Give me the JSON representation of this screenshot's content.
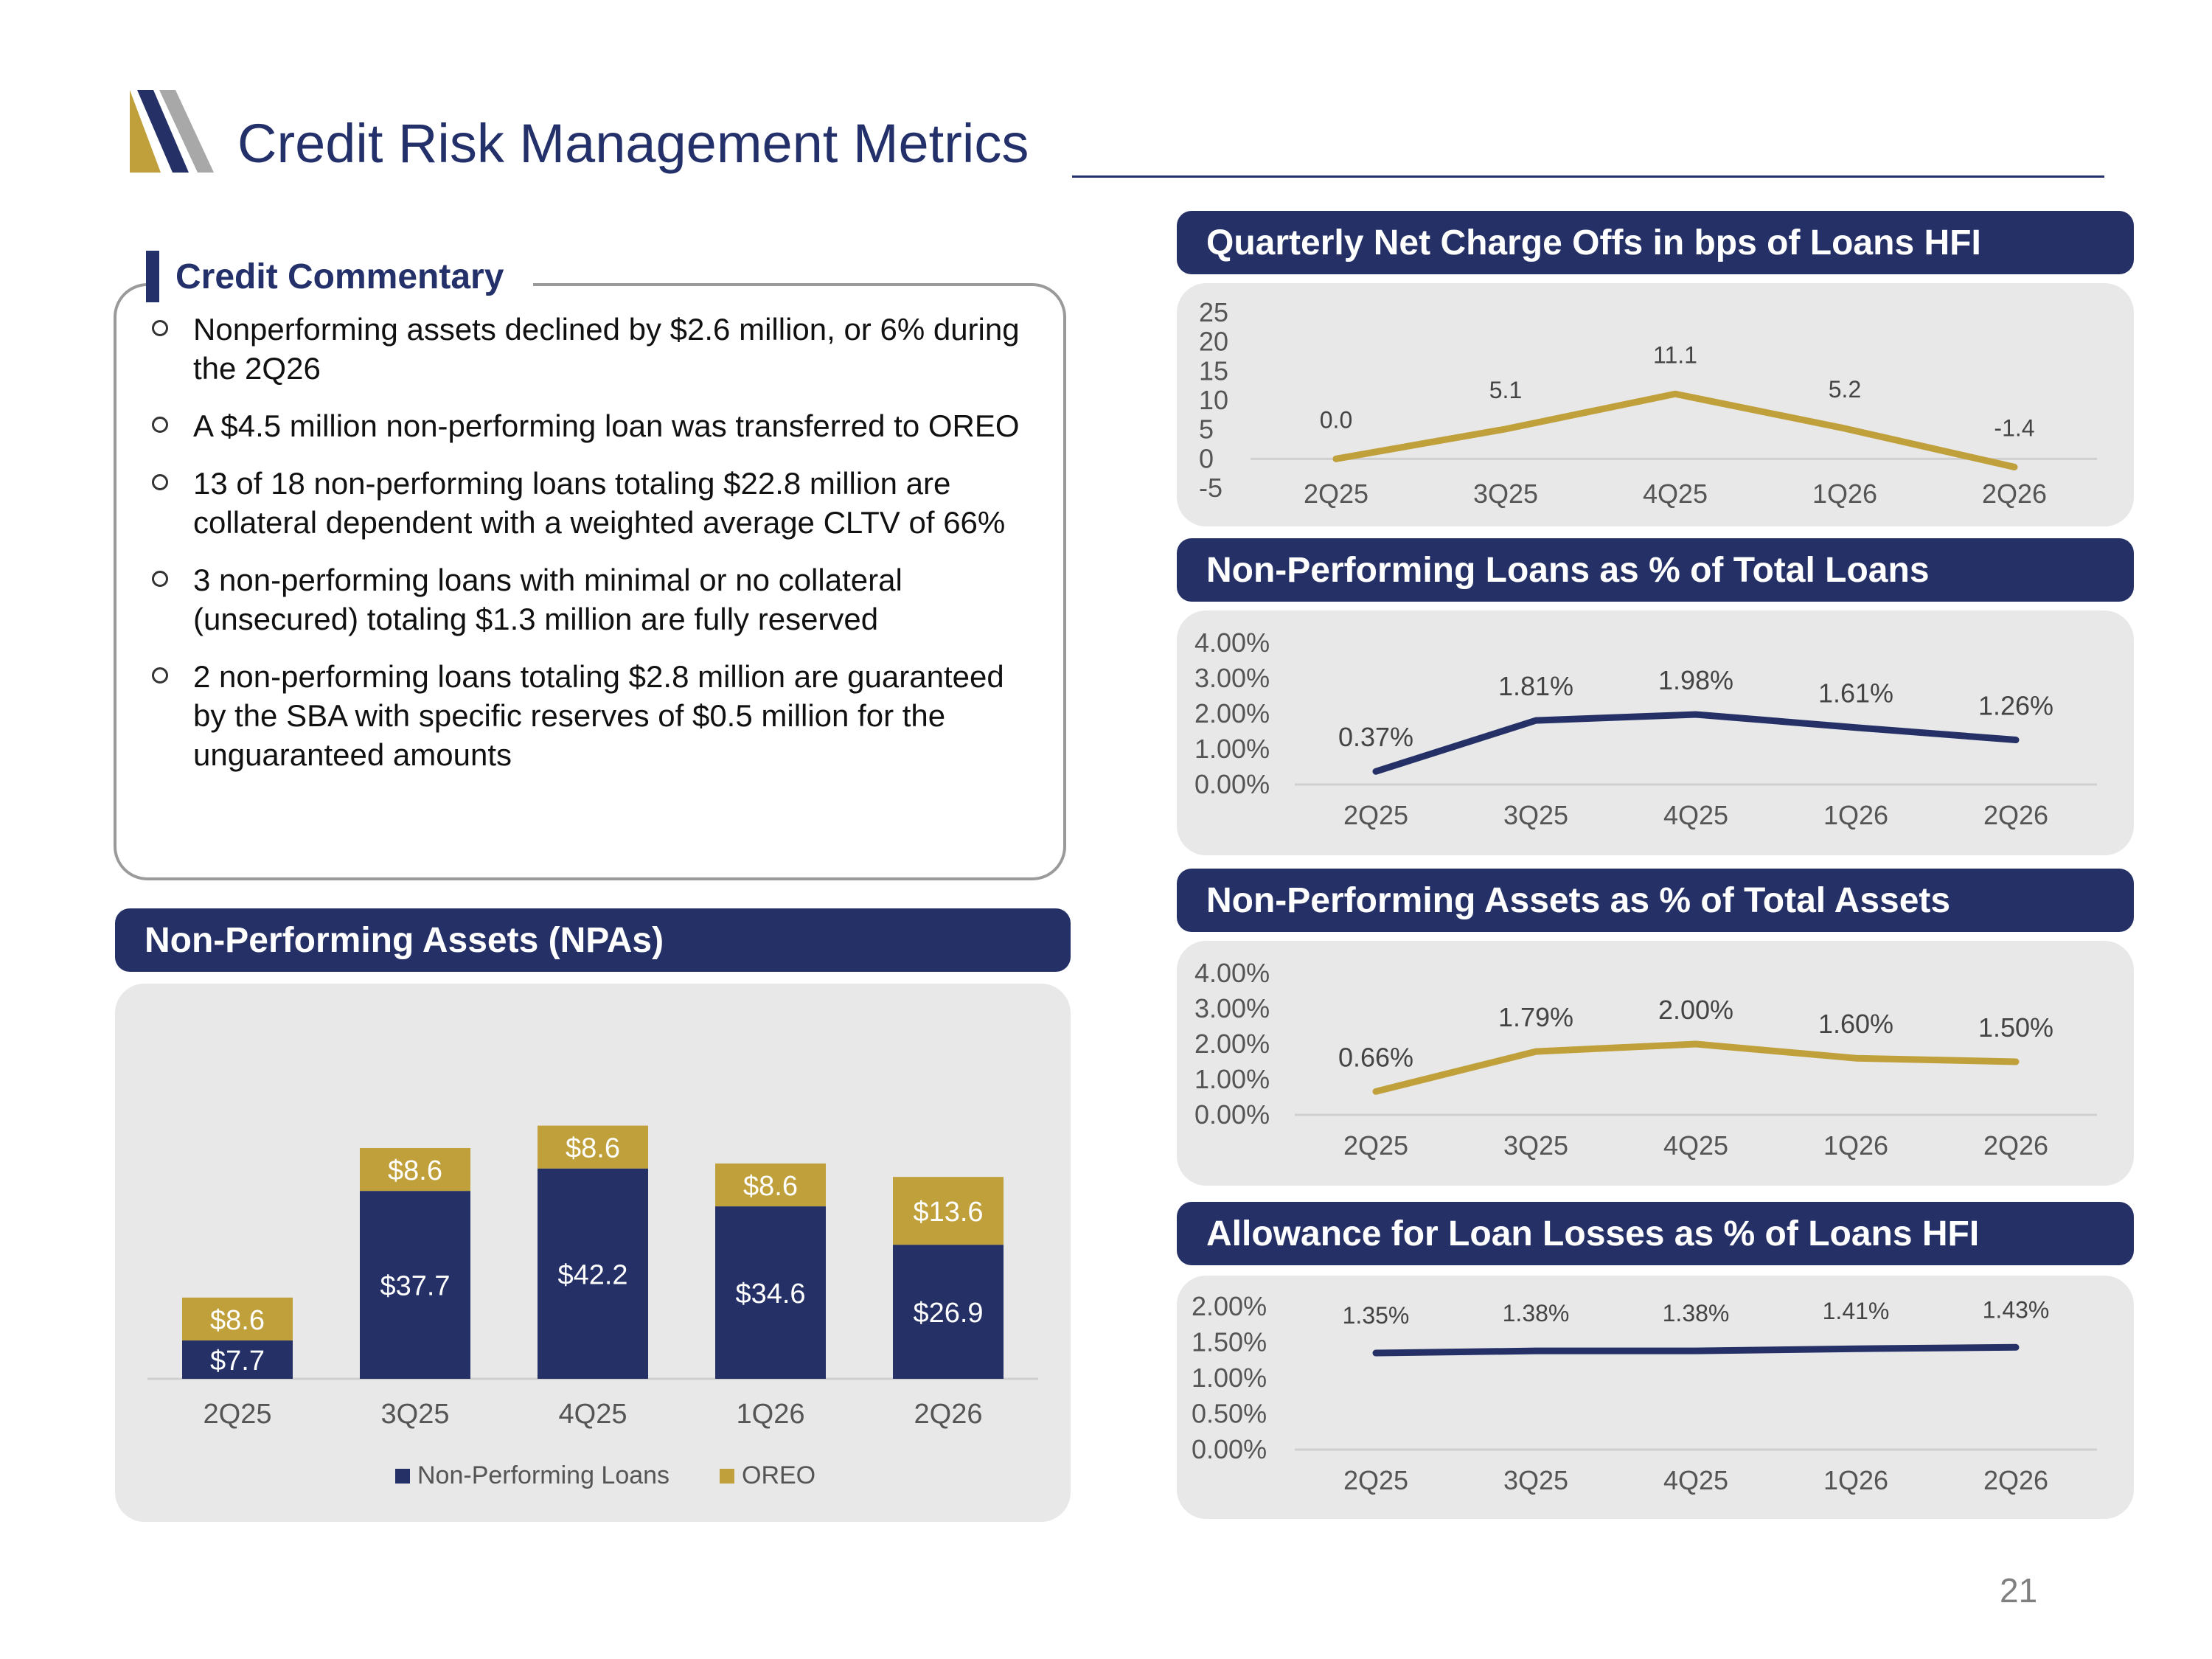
{
  "header": {
    "title": "Credit Risk Management Metrics"
  },
  "commentary": {
    "heading": "Credit Commentary",
    "items": [
      "Nonperforming assets declined by $2.6 million, or 6% during the 2Q26",
      "A $4.5 million non-performing loan was transferred to OREO",
      "13 of 18 non-performing loans totaling $22.8 million are collateral dependent with a weighted average CLTV of 66%",
      "3 non-performing loans with minimal or no collateral (unsecured) totaling $1.3 million are fully reserved",
      "2 non-performing loans totaling $2.8 million are guaranteed by the SBA with specific reserves of $0.5 million for the unguaranteed amounts"
    ]
  },
  "page_number": "21",
  "colors": {
    "navy": "#243066",
    "gold": "#c0a03a",
    "panel": "#e8e8e8"
  },
  "chart_data": [
    {
      "id": "npa",
      "type": "bar",
      "stacked": true,
      "title": "Non-Performing Assets (NPAs)",
      "categories": [
        "2Q25",
        "3Q25",
        "4Q25",
        "1Q26",
        "2Q26"
      ],
      "series": [
        {
          "name": "Non-Performing Loans",
          "color": "#243066",
          "values": [
            7.7,
            37.7,
            42.2,
            34.6,
            26.9
          ],
          "labels": [
            "$7.7",
            "$37.7",
            "$42.2",
            "$34.6",
            "$26.9"
          ]
        },
        {
          "name": "OREO",
          "color": "#c0a03a",
          "values": [
            8.6,
            8.6,
            8.6,
            8.6,
            13.6
          ],
          "labels": [
            "$8.6",
            "$8.6",
            "$8.6",
            "$8.6",
            "$13.6"
          ]
        }
      ],
      "legend": "bottom",
      "grid": false
    },
    {
      "id": "nco",
      "type": "line",
      "title": "Quarterly Net Charge Offs in bps of Loans HFI",
      "categories": [
        "2Q25",
        "3Q25",
        "4Q25",
        "1Q26",
        "2Q26"
      ],
      "values": [
        0.0,
        5.1,
        11.1,
        5.2,
        -1.4
      ],
      "labels": [
        "0.0",
        "5.1",
        "11.1",
        "5.2",
        "-1.4"
      ],
      "yticks": [
        "25",
        "20",
        "15",
        "10",
        "5",
        "0",
        "-5"
      ],
      "ylim": [
        -5,
        25
      ],
      "color": "#c0a03a"
    },
    {
      "id": "npl",
      "type": "line",
      "title": "Non-Performing Loans as % of Total Loans",
      "categories": [
        "2Q25",
        "3Q25",
        "4Q25",
        "1Q26",
        "2Q26"
      ],
      "values": [
        0.37,
        1.81,
        1.98,
        1.61,
        1.26
      ],
      "labels": [
        "0.37%",
        "1.81%",
        "1.98%",
        "1.61%",
        "1.26%"
      ],
      "yticks": [
        "4.00%",
        "3.00%",
        "2.00%",
        "1.00%",
        "0.00%"
      ],
      "ylim": [
        0,
        4
      ],
      "color": "#243066"
    },
    {
      "id": "npa-pct",
      "type": "line",
      "title": "Non-Performing Assets as % of Total  Assets",
      "categories": [
        "2Q25",
        "3Q25",
        "4Q25",
        "1Q26",
        "2Q26"
      ],
      "values": [
        0.66,
        1.79,
        2.0,
        1.6,
        1.5
      ],
      "labels": [
        "0.66%",
        "1.79%",
        "2.00%",
        "1.60%",
        "1.50%"
      ],
      "yticks": [
        "4.00%",
        "3.00%",
        "2.00%",
        "1.00%",
        "0.00%"
      ],
      "ylim": [
        0,
        4
      ],
      "color": "#c0a03a"
    },
    {
      "id": "all",
      "type": "line",
      "title": "Allowance for Loan Losses as % of Loans HFI",
      "categories": [
        "2Q25",
        "3Q25",
        "4Q25",
        "1Q26",
        "2Q26"
      ],
      "values": [
        1.35,
        1.38,
        1.38,
        1.41,
        1.43
      ],
      "labels": [
        "1.35%",
        "1.38%",
        "1.38%",
        "1.41%",
        "1.43%"
      ],
      "yticks": [
        "2.00%",
        "1.50%",
        "1.00%",
        "0.50%",
        "0.00%"
      ],
      "ylim": [
        0,
        2
      ],
      "color": "#243066"
    }
  ]
}
